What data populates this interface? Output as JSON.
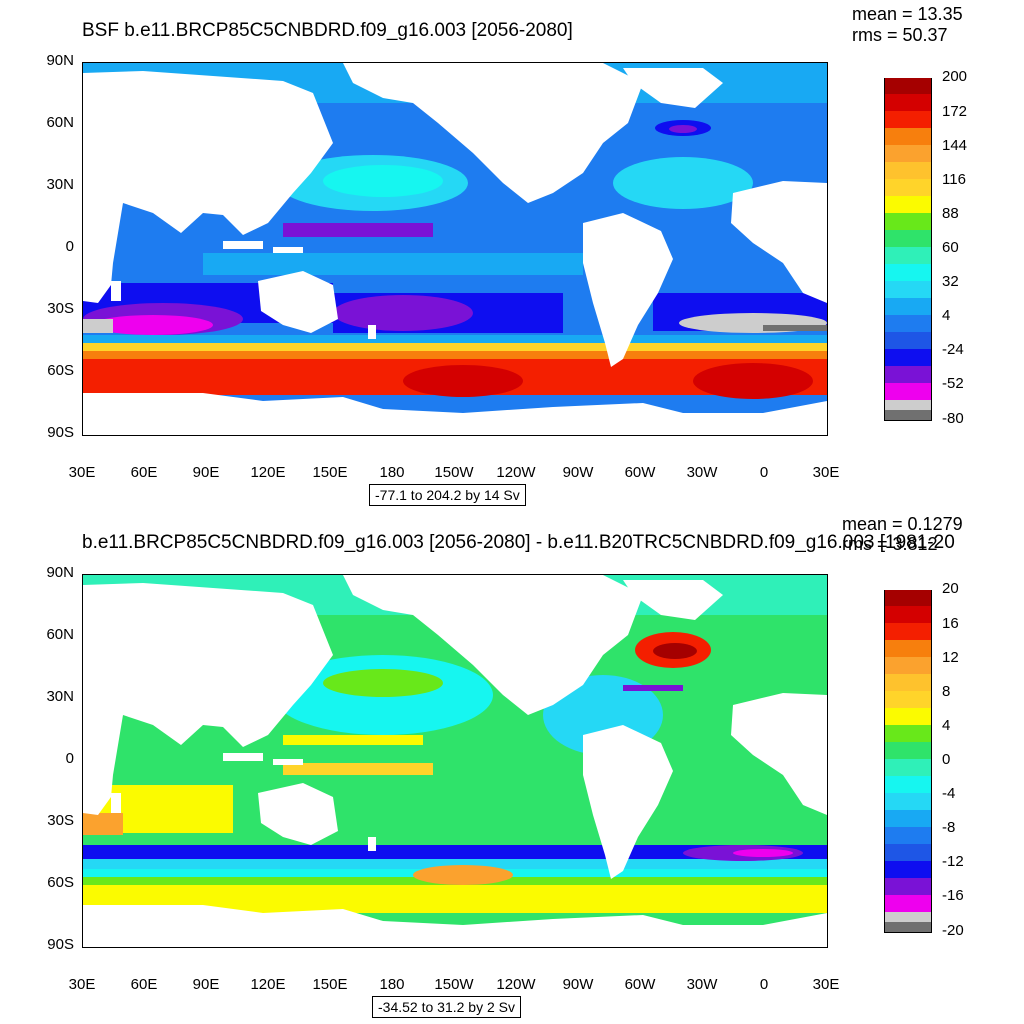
{
  "panels": [
    {
      "title": "BSF b.e11.BRCP85C5CNBDRD.f09_g16.003 [2056-2080]",
      "mean_label": "mean = 13.35",
      "rms_label": "rms = 50.37",
      "range_label": "-77.1 to 204.2 by 14 Sv",
      "y_ticks": [
        "90N",
        "60N",
        "30N",
        "0",
        "30S",
        "60S",
        "90S"
      ],
      "x_ticks": [
        "30E",
        "60E",
        "90E",
        "120E",
        "150E",
        "180",
        "150W",
        "120W",
        "90W",
        "60W",
        "30W",
        "0",
        "30E"
      ],
      "colorbar_labels": [
        "200",
        "172",
        "144",
        "116",
        "88",
        "60",
        "32",
        "4",
        "-24",
        "-52",
        "-80"
      ]
    },
    {
      "title": "b.e11.BRCP85C5CNBDRD.f09_g16.003 [2056-2080] - b.e11.B20TRC5CNBDRD.f09_g16.003 [1981-20",
      "mean_label": "mean = 0.1279",
      "rms_label": "rms = 3.812",
      "range_label": "-34.52 to 31.2 by 2 Sv",
      "y_ticks": [
        "90N",
        "60N",
        "30N",
        "0",
        "30S",
        "60S",
        "90S"
      ],
      "x_ticks": [
        "30E",
        "60E",
        "90E",
        "120E",
        "150E",
        "180",
        "150W",
        "120W",
        "90W",
        "60W",
        "30W",
        "0",
        "30E"
      ],
      "colorbar_labels": [
        "20",
        "16",
        "12",
        "8",
        "4",
        "0",
        "-4",
        "-8",
        "-12",
        "-16",
        "-20"
      ]
    }
  ],
  "colorbar_colors": [
    "#a50000",
    "#d40000",
    "#f41f00",
    "#f77f0d",
    "#fba22e",
    "#fec22d",
    "#ffd42a",
    "#fbfb00",
    "#68e81a",
    "#2fe36a",
    "#2ff0b8",
    "#16f6f0",
    "#25d8f5",
    "#18a9f3",
    "#1e7cf0",
    "#1e56e6",
    "#0e0ef0",
    "#7a12d6",
    "#ee00ee",
    "#cdcdcd",
    "#707070"
  ]
}
